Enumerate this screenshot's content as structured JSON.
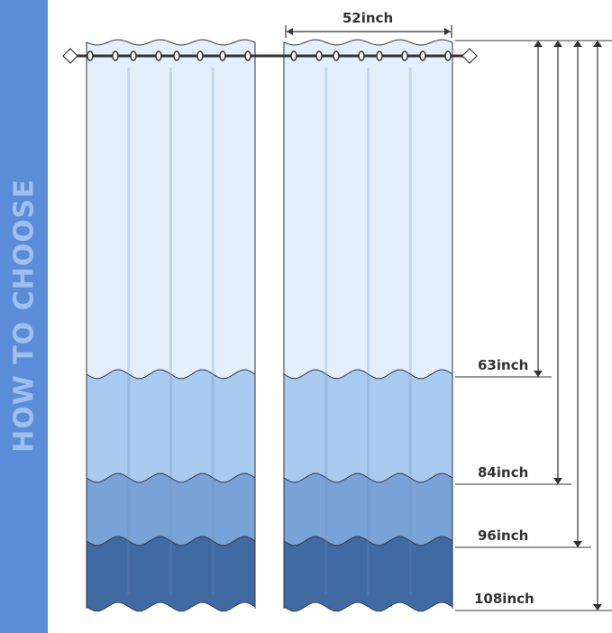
{
  "sidebar": {
    "title": "HOW TO CHOOSE",
    "color": "#5a8cd8"
  },
  "width_label": "52inch",
  "lengths": [
    {
      "label": "63inch",
      "color": "#e3f0fc"
    },
    {
      "label": "84inch",
      "color": "#a9cbf0"
    },
    {
      "label": "96inch",
      "color": "#79a3d6"
    },
    {
      "label": "108inch",
      "color": "#3f6aa2"
    }
  ]
}
